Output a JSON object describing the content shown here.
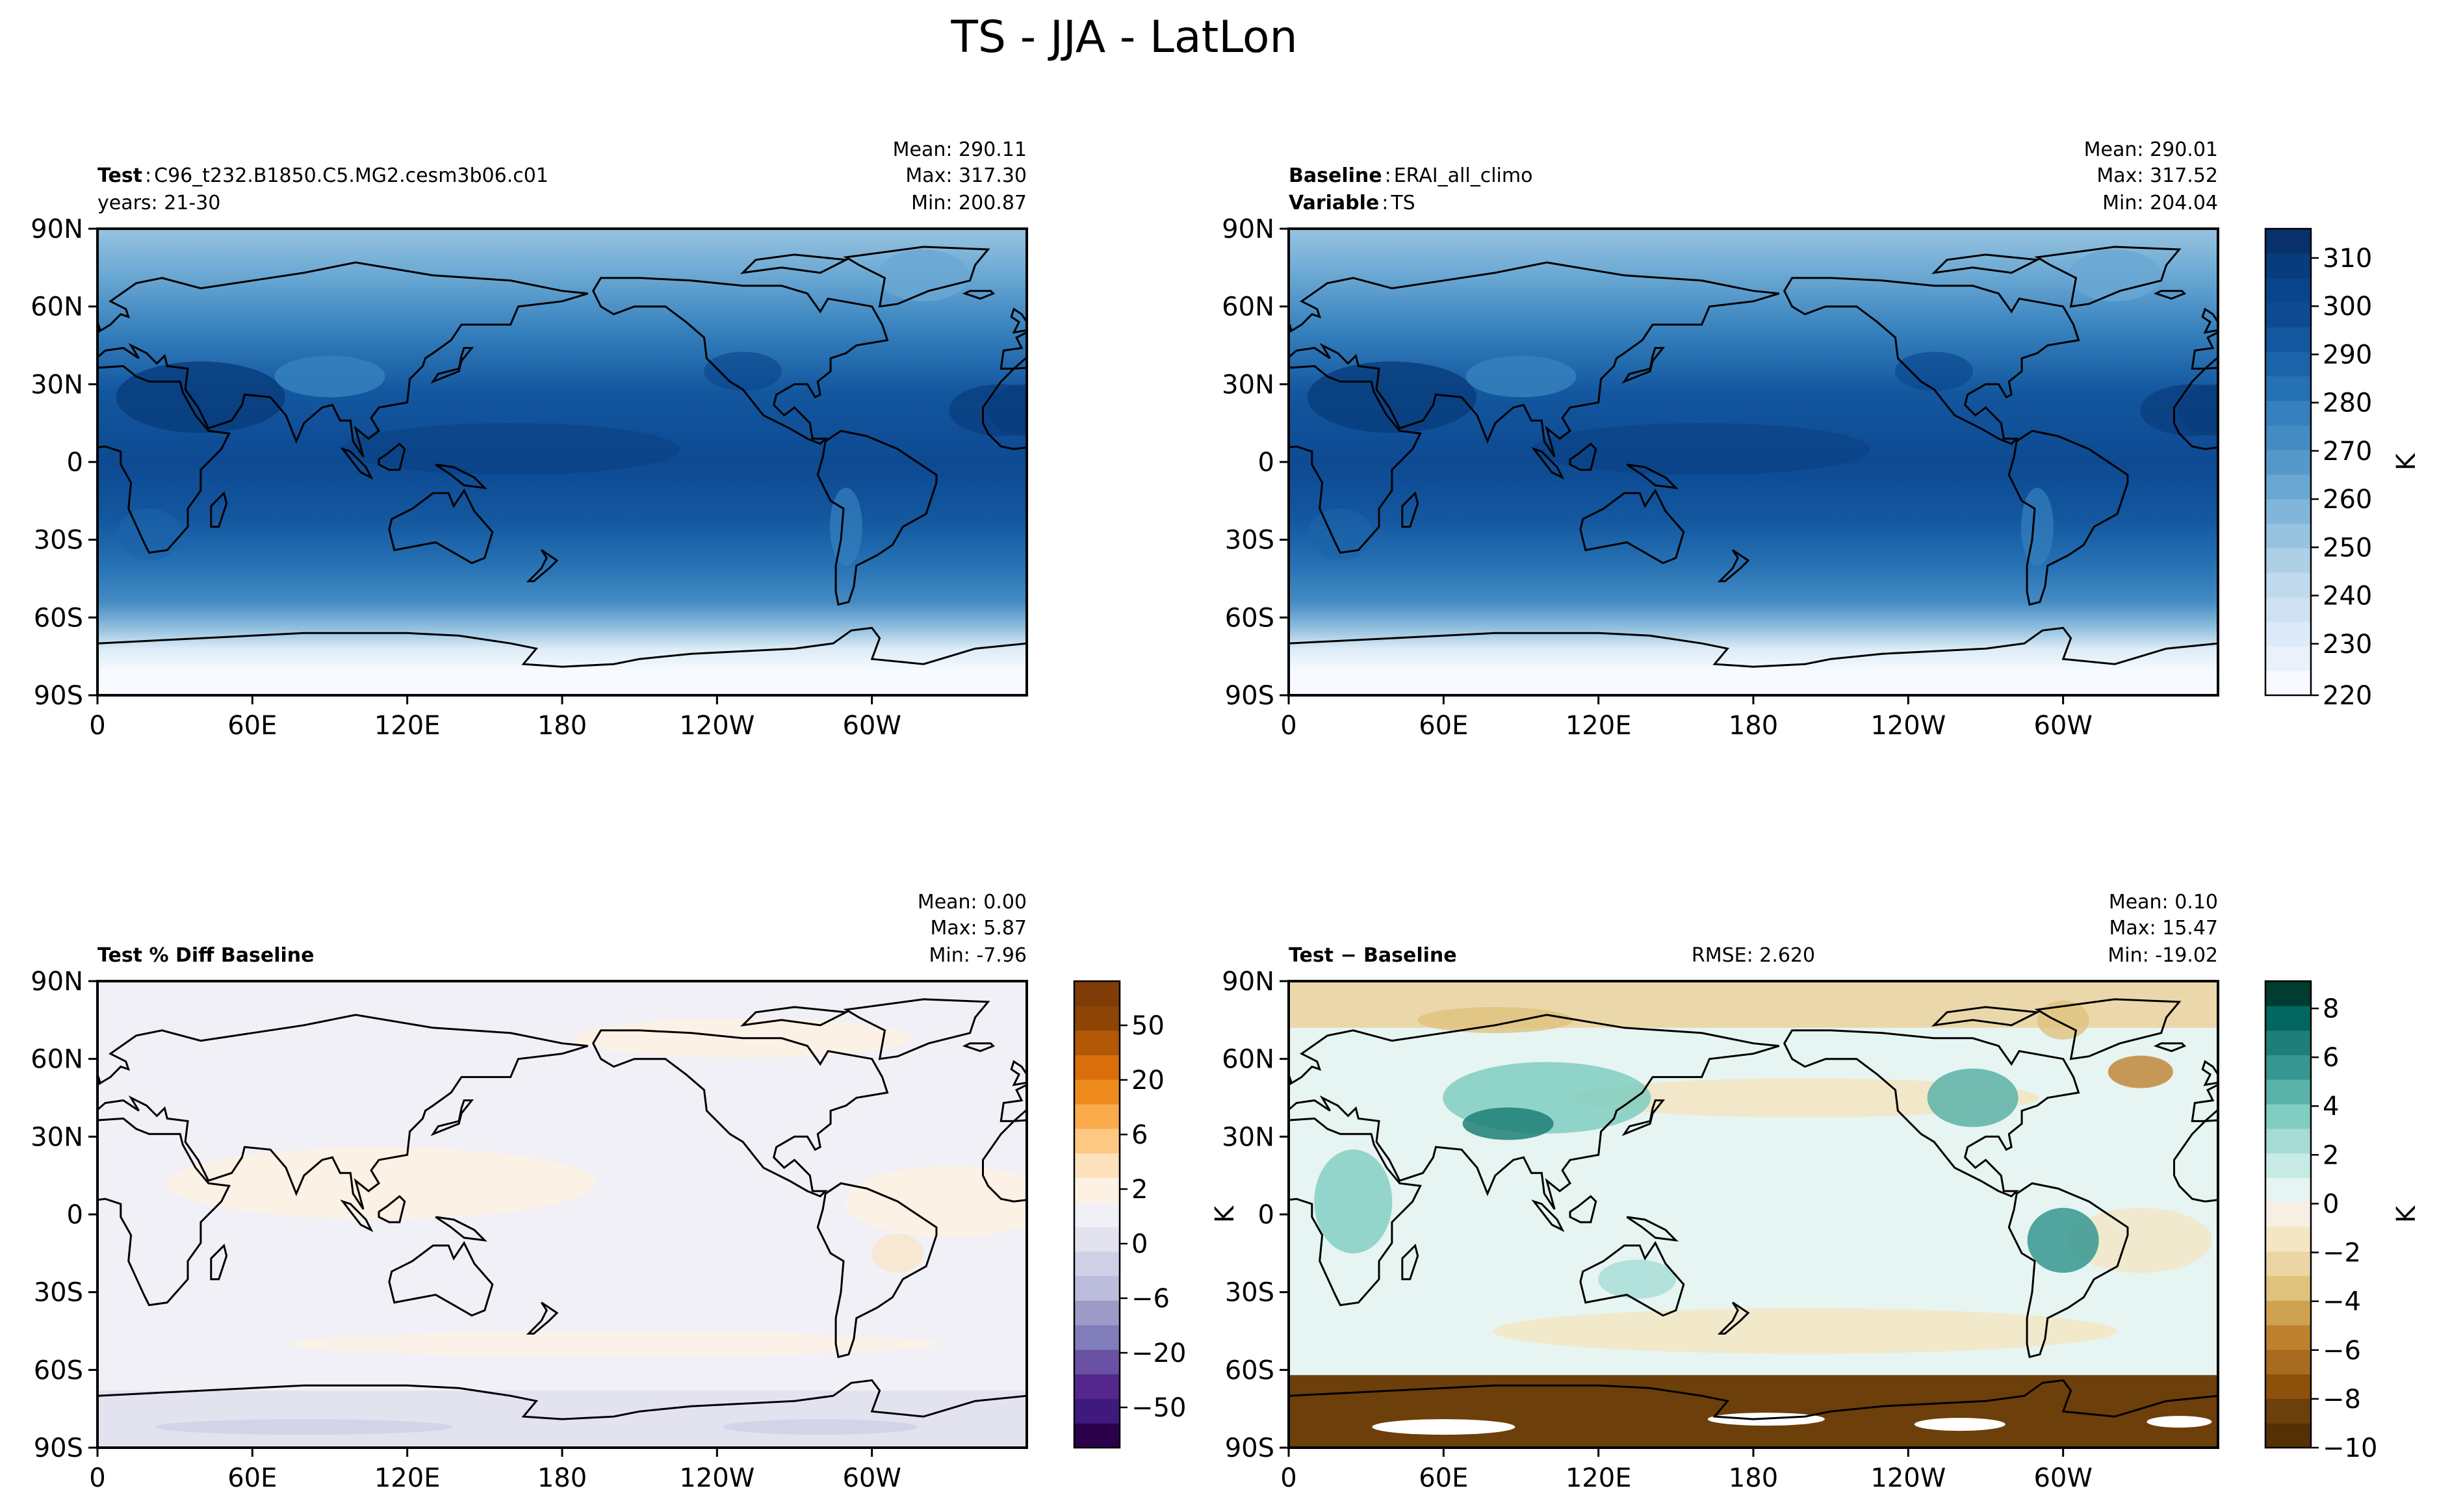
{
  "figure": {
    "title": "TS - JJA - LatLon"
  },
  "map_axes": {
    "xticks": [
      {
        "lon": 0,
        "label": "0"
      },
      {
        "lon": 60,
        "label": "60E"
      },
      {
        "lon": 120,
        "label": "120E"
      },
      {
        "lon": 180,
        "label": "180"
      },
      {
        "lon": 240,
        "label": "120W"
      },
      {
        "lon": 300,
        "label": "60W"
      }
    ],
    "yticks": [
      {
        "lat": 90,
        "label": "90N"
      },
      {
        "lat": 60,
        "label": "60N"
      },
      {
        "lat": 30,
        "label": "30N"
      },
      {
        "lat": 0,
        "label": "0"
      },
      {
        "lat": -30,
        "label": "30S"
      },
      {
        "lat": -60,
        "label": "60S"
      },
      {
        "lat": -90,
        "label": "90S"
      }
    ],
    "xlim": [
      0,
      360
    ],
    "ylim": [
      -90,
      90
    ]
  },
  "panels": [
    {
      "id": "test",
      "line1_key": "Test",
      "line1_sep": ":",
      "line1_value": "C96_t232.B1850.C5.MG2.cesm3b06.c01",
      "line2_key": "",
      "line2_sep": "",
      "line2_value": "years: 21-30",
      "center_text": "",
      "stats": {
        "mean": "Mean: 290.11",
        "max": "Max: 317.30",
        "min": "Min: 200.87"
      },
      "field": "absolute",
      "ylabel": ""
    },
    {
      "id": "baseline",
      "line1_key": "Baseline",
      "line1_sep": ":",
      "line1_value": "ERAI_all_climo",
      "line2_key": "Variable",
      "line2_sep": ":",
      "line2_value": "TS",
      "center_text": "",
      "stats": {
        "mean": "Mean: 290.01",
        "max": "Max: 317.52",
        "min": "Min: 204.04"
      },
      "field": "absolute",
      "ylabel": ""
    },
    {
      "id": "pctdiff",
      "line1_key": "",
      "line1_sep": "",
      "line1_value": "",
      "line2_key": "Test % Diff Baseline",
      "line2_sep": "",
      "line2_value": "",
      "center_text": "",
      "stats": {
        "mean": "Mean:  0.00",
        "max": "Max:  5.87",
        "min": "Min: -7.96"
      },
      "field": "pct",
      "ylabel": ""
    },
    {
      "id": "diff",
      "line1_key": "",
      "line1_sep": "",
      "line1_value": "",
      "line2_key": "Test − Baseline",
      "line2_sep": "",
      "line2_value": "",
      "center_text": "RMSE: 2.620",
      "stats": {
        "mean": "Mean:  0.10",
        "max": "Max: 15.47",
        "min": "Min: -19.02"
      },
      "field": "diff",
      "ylabel": "K"
    }
  ],
  "colorbars": [
    {
      "id": "cb-absolute",
      "label": "K",
      "ticks": [
        "310",
        "300",
        "290",
        "280",
        "270",
        "260",
        "250",
        "240",
        "230",
        "220"
      ],
      "colors": [
        "#f7fbff",
        "#e9f2fb",
        "#dcebf7",
        "#cfe1f2",
        "#c0d9ed",
        "#add0e7",
        "#97c3e0",
        "#80b6da",
        "#6aa8d3",
        "#5599cb",
        "#448bc3",
        "#3580bd",
        "#2671b4",
        "#1c64aa",
        "#13579f",
        "#0d4a92",
        "#08458a",
        "#083c7c",
        "#08306b"
      ]
    },
    {
      "id": "cb-pct",
      "label": "",
      "ticks": [
        "50",
        "20",
        "6",
        "2",
        "0",
        "−6",
        "−20",
        "−50"
      ],
      "colors": [
        "#2d004b",
        "#3f197d",
        "#54278f",
        "#6a51a3",
        "#807dba",
        "#9e9ac8",
        "#bcbddc",
        "#d0d1e6",
        "#e3e3f0",
        "#f0f0f6",
        "#fdf1e3",
        "#fee2bd",
        "#fdc883",
        "#fbaa4c",
        "#ef8b1d",
        "#d96e0b",
        "#b35806",
        "#8c4505",
        "#7f3b08"
      ]
    },
    {
      "id": "cb-diff",
      "label": "K",
      "ticks": [
        "8",
        "6",
        "4",
        "2",
        "0",
        "−2",
        "−4",
        "−6",
        "−8",
        "−10"
      ],
      "colors": [
        "#543005",
        "#6d3f0a",
        "#8c510a",
        "#a86a1e",
        "#bf812d",
        "#cfa252",
        "#dfc27d",
        "#ebd5a2",
        "#f3e6c4",
        "#f6efe2",
        "#e6f4f2",
        "#c7eae5",
        "#a6dcd4",
        "#80cdc1",
        "#5ab2a8",
        "#35978f",
        "#1d7f77",
        "#01665e",
        "#003c30"
      ]
    }
  ]
}
